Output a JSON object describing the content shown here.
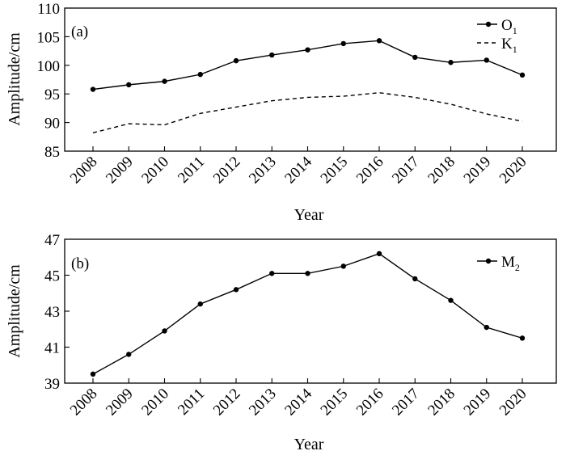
{
  "chart_data": [
    {
      "type": "line",
      "panel_label": "(a)",
      "xlabel": "Year",
      "ylabel": "Amplitude/cm",
      "ylim": [
        85,
        110
      ],
      "yticks": [
        85,
        90,
        95,
        100,
        105,
        110
      ],
      "categories": [
        "2008",
        "2009",
        "2010",
        "2011",
        "2012",
        "2013",
        "2014",
        "2015",
        "2016",
        "2017",
        "2018",
        "2019",
        "2020"
      ],
      "legend_position": "top-right",
      "series": [
        {
          "name": "O",
          "name_subscript": "1",
          "style": "solid-markers",
          "values": [
            95.8,
            96.6,
            97.2,
            98.4,
            100.8,
            101.8,
            102.7,
            103.8,
            104.3,
            101.4,
            100.5,
            100.9,
            98.3
          ]
        },
        {
          "name": "K",
          "name_subscript": "1",
          "style": "dashed",
          "values": [
            88.2,
            89.8,
            89.6,
            91.6,
            92.7,
            93.8,
            94.4,
            94.6,
            95.2,
            94.4,
            93.2,
            91.5,
            90.2
          ]
        }
      ]
    },
    {
      "type": "line",
      "panel_label": "(b)",
      "xlabel": "Year",
      "ylabel": "Amplitude/cm",
      "ylim": [
        39,
        47
      ],
      "yticks": [
        39,
        41,
        43,
        45,
        47
      ],
      "categories": [
        "2008",
        "2009",
        "2010",
        "2011",
        "2012",
        "2013",
        "2014",
        "2015",
        "2016",
        "2017",
        "2018",
        "2019",
        "2020"
      ],
      "legend_position": "top-right",
      "series": [
        {
          "name": "M",
          "name_subscript": "2",
          "style": "solid-markers",
          "values": [
            39.5,
            40.6,
            41.9,
            43.4,
            44.2,
            45.1,
            45.1,
            45.5,
            46.2,
            44.8,
            43.6,
            42.1,
            41.5
          ]
        }
      ]
    }
  ]
}
